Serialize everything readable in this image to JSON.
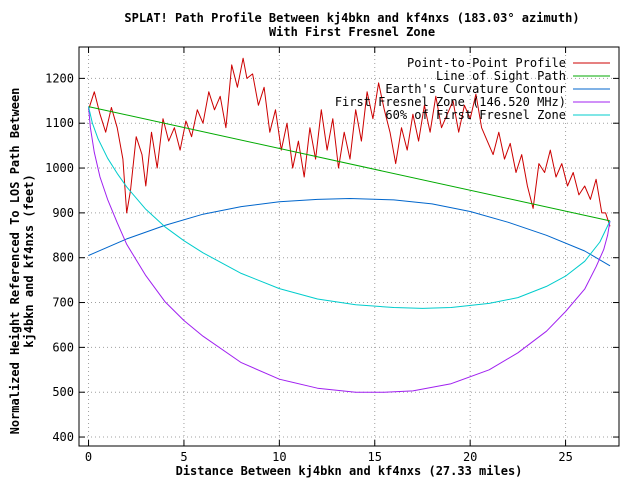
{
  "chart_data": {
    "type": "line",
    "title": "SPLAT! Path Profile Between kj4bkn and kf4nxs (183.03° azimuth)",
    "subtitle": "With First Fresnel Zone",
    "xlabel": "Distance Between kj4bkn and kf4nxs (27.33 miles)",
    "ylabel_line1": "Normalized Height Referenced To LOS Path Between",
    "ylabel_line2": "kj4bkn and kf4nxs (feet)",
    "xlim": [
      -0.5,
      27.8
    ],
    "ylim": [
      380,
      1270
    ],
    "xticks": [
      0,
      5,
      10,
      15,
      20,
      25
    ],
    "xtick_labels": [
      "0",
      "5",
      "10",
      "15",
      "20",
      "25"
    ],
    "yticks": [
      400,
      500,
      600,
      700,
      800,
      900,
      1000,
      1100,
      1200
    ],
    "ytick_labels": [
      "400",
      "500",
      "600",
      "700",
      "800",
      "900",
      "1000",
      "1100",
      "1200"
    ],
    "grid": true,
    "legend_position": "top-right",
    "series": [
      {
        "name": "Point-to-Point Profile",
        "color": "#cc0000",
        "x": [
          0,
          0.3,
          0.6,
          0.9,
          1.2,
          1.5,
          1.8,
          2.0,
          2.2,
          2.5,
          2.8,
          3.0,
          3.3,
          3.6,
          3.9,
          4.2,
          4.5,
          4.8,
          5.1,
          5.4,
          5.7,
          6.0,
          6.3,
          6.6,
          6.9,
          7.2,
          7.5,
          7.8,
          8.1,
          8.3,
          8.6,
          8.9,
          9.2,
          9.5,
          9.8,
          10.1,
          10.4,
          10.7,
          11.0,
          11.3,
          11.6,
          11.9,
          12.2,
          12.5,
          12.8,
          13.1,
          13.4,
          13.7,
          14.0,
          14.3,
          14.6,
          14.9,
          15.2,
          15.5,
          15.8,
          16.1,
          16.4,
          16.7,
          17.0,
          17.3,
          17.6,
          17.9,
          18.2,
          18.5,
          18.8,
          19.1,
          19.4,
          19.7,
          20.0,
          20.3,
          20.6,
          20.9,
          21.2,
          21.5,
          21.8,
          22.1,
          22.4,
          22.7,
          23.0,
          23.3,
          23.6,
          23.9,
          24.2,
          24.5,
          24.8,
          25.1,
          25.4,
          25.7,
          26.0,
          26.3,
          26.6,
          26.9,
          27.1,
          27.33
        ],
        "values": [
          1130,
          1170,
          1120,
          1080,
          1135,
          1090,
          1020,
          900,
          950,
          1070,
          1030,
          960,
          1080,
          1000,
          1110,
          1060,
          1090,
          1040,
          1105,
          1070,
          1130,
          1100,
          1170,
          1130,
          1160,
          1090,
          1230,
          1180,
          1245,
          1200,
          1210,
          1140,
          1180,
          1080,
          1130,
          1040,
          1100,
          1000,
          1060,
          980,
          1090,
          1020,
          1130,
          1040,
          1110,
          1000,
          1080,
          1020,
          1130,
          1060,
          1170,
          1110,
          1190,
          1130,
          1080,
          1010,
          1090,
          1040,
          1120,
          1060,
          1140,
          1080,
          1160,
          1090,
          1120,
          1150,
          1080,
          1140,
          1110,
          1165,
          1090,
          1060,
          1030,
          1080,
          1020,
          1055,
          990,
          1030,
          960,
          910,
          1010,
          990,
          1040,
          980,
          1010,
          960,
          990,
          940,
          960,
          930,
          975,
          900,
          900,
          870
        ]
      },
      {
        "name": "Line of Sight Path",
        "color": "#00aa00",
        "x": [
          0,
          27.33
        ],
        "values": [
          1137,
          882
        ]
      },
      {
        "name": "Earth's Curvature Contour",
        "color": "#0066cc",
        "x": [
          0,
          2,
          4,
          6,
          8,
          10,
          12,
          13.7,
          16,
          18,
          20,
          22,
          24,
          26,
          27.33
        ],
        "values": [
          805,
          842,
          872,
          897,
          914,
          925,
          930,
          932,
          929,
          920,
          903,
          879,
          850,
          815,
          782
        ]
      },
      {
        "name": "First Fresnel Zone (146.520 MHz)",
        "color": "#a020f0",
        "x": [
          0,
          0.1,
          0.3,
          0.6,
          1,
          1.5,
          2,
          3,
          4,
          5,
          6,
          8,
          10,
          12,
          14,
          15.5,
          17,
          19,
          21,
          22.5,
          24,
          25,
          26,
          26.6,
          27,
          27.2,
          27.33
        ],
        "values": [
          1137,
          1090,
          1035,
          980,
          930,
          878,
          830,
          760,
          702,
          660,
          625,
          566,
          529,
          509,
          500,
          500,
          503,
          519,
          550,
          588,
          636,
          680,
          730,
          780,
          818,
          850,
          882
        ]
      },
      {
        "name": "60% of First Fresnel Zone",
        "color": "#00cccc",
        "x": [
          0,
          0.2,
          0.5,
          1,
          1.5,
          2,
          3,
          4,
          5,
          6,
          8,
          10,
          12,
          14,
          16,
          17.5,
          19,
          21,
          22.5,
          24,
          25,
          26,
          26.8,
          27.33
        ],
        "values": [
          1137,
          1100,
          1065,
          1022,
          988,
          958,
          908,
          869,
          838,
          811,
          765,
          731,
          708,
          695,
          689,
          687,
          689,
          698,
          711,
          736,
          759,
          792,
          835,
          882
        ]
      }
    ]
  }
}
